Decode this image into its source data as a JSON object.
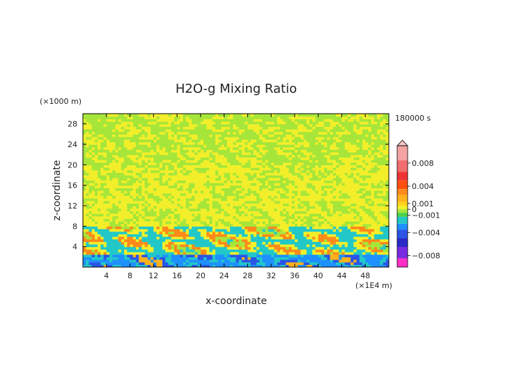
{
  "chart_data": {
    "type": "heatmap",
    "title": "H2O-g Mixing Ratio",
    "xlabel": "x-coordinate",
    "ylabel": "z-coordinate",
    "x_unit": "(×1E4 m)",
    "y_unit": "(×1000 m)",
    "time_label": "180000 s",
    "xlim": [
      0,
      52
    ],
    "ylim": [
      0,
      30
    ],
    "x_ticks": [
      4,
      8,
      12,
      16,
      20,
      24,
      28,
      32,
      36,
      40,
      44,
      48
    ],
    "y_ticks": [
      4,
      8,
      12,
      16,
      20,
      24,
      28
    ],
    "colorbar": {
      "range": [
        -0.01,
        0.011
      ],
      "tick_values": [
        0.008,
        0.004,
        0.001,
        0,
        -0.001,
        -0.004,
        -0.008
      ],
      "tick_labels": [
        "0.008",
        "0.004",
        "0.001",
        "0",
        "−0.001",
        "−0.004",
        "−0.008"
      ],
      "levels": [
        {
          "lo": 0.0085,
          "hi": 0.011,
          "color": "#f4a3a3"
        },
        {
          "lo": 0.0065,
          "hi": 0.0085,
          "color": "#f26d6d"
        },
        {
          "lo": 0.005,
          "hi": 0.0065,
          "color": "#ee3333"
        },
        {
          "lo": 0.0035,
          "hi": 0.005,
          "color": "#ff4f10"
        },
        {
          "lo": 0.0025,
          "hi": 0.0035,
          "color": "#ff8a1a"
        },
        {
          "lo": 0.0013,
          "hi": 0.0025,
          "color": "#ffb21c"
        },
        {
          "lo": 0.0006,
          "hi": 0.0013,
          "color": "#ffd21a"
        },
        {
          "lo": 0.0,
          "hi": 0.0006,
          "color": "#f2ef2a"
        },
        {
          "lo": -0.0006,
          "hi": 0.0,
          "color": "#a6e63a"
        },
        {
          "lo": -0.0013,
          "hi": -0.0006,
          "color": "#4fd24a"
        },
        {
          "lo": -0.0025,
          "hi": -0.0013,
          "color": "#22c8c8"
        },
        {
          "lo": -0.0035,
          "hi": -0.0025,
          "color": "#1e90ff"
        },
        {
          "lo": -0.005,
          "hi": -0.0035,
          "color": "#2a55e6"
        },
        {
          "lo": -0.0065,
          "hi": -0.005,
          "color": "#2a2ac8"
        },
        {
          "lo": -0.0085,
          "hi": -0.0065,
          "color": "#7a2ae0"
        },
        {
          "lo": -0.01,
          "hi": -0.0085,
          "color": "#ff2fc8"
        }
      ]
    },
    "field_bands": [
      {
        "z": [
          0,
          2.5
        ],
        "description": "mixed",
        "colors": [
          "#1e90ff",
          "#22c8c8",
          "#2a55e6",
          "#ffb21c"
        ]
      },
      {
        "z": [
          2.5,
          8
        ],
        "description": "mixed",
        "colors": [
          "#22c8c8",
          "#f2ef2a",
          "#ff8a1a",
          "#a6e63a"
        ]
      },
      {
        "z": [
          8,
          20
        ],
        "description": "mostly zero",
        "colors": [
          "#f2ef2a",
          "#a6e63a"
        ]
      },
      {
        "z": [
          20,
          30
        ],
        "description": "mostly zero",
        "colors": [
          "#a6e63a",
          "#f2ef2a"
        ]
      }
    ]
  }
}
